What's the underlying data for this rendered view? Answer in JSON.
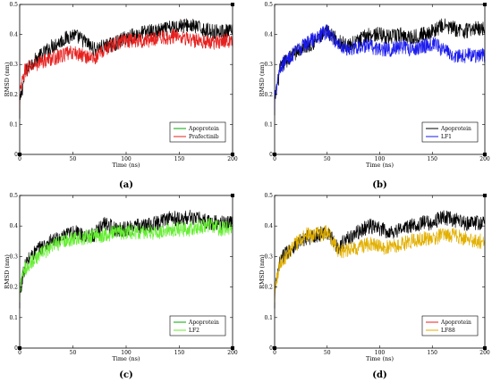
{
  "chart_data": [
    {
      "type": "line",
      "panel_label": "(a)",
      "xlabel": "Time (ns)",
      "ylabel": "RMSD (nm)",
      "xlim": [
        0,
        200
      ],
      "ylim": [
        0,
        0.5
      ],
      "xticks": [
        "0",
        "50",
        "100",
        "150",
        "200"
      ],
      "yticks": [
        "0",
        "0.1",
        "0.2",
        "0.3",
        "0.4",
        "0.5"
      ],
      "legend_position": "bottom-right",
      "x": [
        0,
        5,
        10,
        20,
        30,
        40,
        50,
        60,
        70,
        80,
        90,
        100,
        110,
        120,
        130,
        140,
        150,
        160,
        170,
        180,
        190,
        200
      ],
      "series": [
        {
          "name": "Apoprotein",
          "color": "#000000",
          "legend_color": "#00aa00",
          "values": [
            0.17,
            0.27,
            0.3,
            0.33,
            0.36,
            0.38,
            0.4,
            0.38,
            0.35,
            0.36,
            0.37,
            0.39,
            0.4,
            0.41,
            0.41,
            0.42,
            0.43,
            0.43,
            0.42,
            0.41,
            0.41,
            0.41
          ]
        },
        {
          "name": "Prafectinib",
          "color": "#e6201e",
          "legend_color": "#e6201e",
          "values": [
            0.2,
            0.28,
            0.29,
            0.31,
            0.32,
            0.33,
            0.34,
            0.33,
            0.32,
            0.35,
            0.37,
            0.38,
            0.38,
            0.38,
            0.39,
            0.39,
            0.4,
            0.38,
            0.38,
            0.37,
            0.38,
            0.38
          ]
        }
      ]
    },
    {
      "type": "line",
      "panel_label": "(b)",
      "xlabel": "Time (ns)",
      "ylabel": "RMSD (nm)",
      "xlim": [
        0,
        200
      ],
      "ylim": [
        0,
        0.5
      ],
      "xticks": [
        "0",
        "50",
        "100",
        "150",
        "200"
      ],
      "yticks": [
        "0",
        "0.1",
        "0.2",
        "0.3",
        "0.4",
        "0.5"
      ],
      "legend_position": "bottom-right",
      "x": [
        0,
        5,
        10,
        20,
        30,
        40,
        50,
        60,
        70,
        80,
        90,
        100,
        110,
        120,
        130,
        140,
        150,
        160,
        170,
        180,
        190,
        200
      ],
      "series": [
        {
          "name": "Apoprotein",
          "color": "#000000",
          "legend_color": "#000000",
          "values": [
            0.18,
            0.28,
            0.31,
            0.34,
            0.36,
            0.38,
            0.41,
            0.38,
            0.36,
            0.38,
            0.4,
            0.4,
            0.39,
            0.4,
            0.39,
            0.4,
            0.41,
            0.43,
            0.42,
            0.41,
            0.42,
            0.42
          ]
        },
        {
          "name": "LF1",
          "color": "#1a1aee",
          "legend_color": "#1a1aee",
          "values": [
            0.2,
            0.29,
            0.31,
            0.34,
            0.37,
            0.39,
            0.41,
            0.37,
            0.35,
            0.36,
            0.36,
            0.35,
            0.35,
            0.36,
            0.35,
            0.36,
            0.37,
            0.35,
            0.33,
            0.33,
            0.33,
            0.33
          ]
        }
      ]
    },
    {
      "type": "line",
      "panel_label": "(c)",
      "xlabel": "Time (ns)",
      "ylabel": "RMSD (nm)",
      "xlim": [
        0,
        200
      ],
      "ylim": [
        0,
        0.5
      ],
      "xticks": [
        "0",
        "50",
        "100",
        "150",
        "200"
      ],
      "yticks": [
        "0",
        "0.1",
        "0.2",
        "0.3",
        "0.4",
        "0.5"
      ],
      "legend_position": "bottom-right",
      "x": [
        0,
        5,
        10,
        20,
        30,
        40,
        50,
        60,
        70,
        80,
        90,
        100,
        110,
        120,
        130,
        140,
        150,
        160,
        170,
        180,
        190,
        200
      ],
      "series": [
        {
          "name": "Apoprotein",
          "color": "#000000",
          "legend_color": "#00aa00",
          "values": [
            0.18,
            0.27,
            0.3,
            0.33,
            0.35,
            0.36,
            0.38,
            0.37,
            0.37,
            0.41,
            0.39,
            0.39,
            0.4,
            0.4,
            0.41,
            0.43,
            0.42,
            0.43,
            0.42,
            0.41,
            0.41,
            0.41
          ]
        },
        {
          "name": "LF2",
          "color": "#66ee33",
          "legend_color": "#66ee33",
          "values": [
            0.2,
            0.26,
            0.28,
            0.31,
            0.33,
            0.35,
            0.36,
            0.36,
            0.37,
            0.37,
            0.38,
            0.38,
            0.38,
            0.38,
            0.38,
            0.39,
            0.39,
            0.39,
            0.4,
            0.4,
            0.39,
            0.4
          ]
        }
      ]
    },
    {
      "type": "line",
      "panel_label": "(d)",
      "xlabel": "Time (ns)",
      "ylabel": "RMSD (nm)",
      "xlim": [
        0,
        200
      ],
      "ylim": [
        0,
        0.5
      ],
      "xticks": [
        "0",
        "50",
        "100",
        "150",
        "200"
      ],
      "yticks": [
        "0",
        "0.1",
        "0.2",
        "0.3",
        "0.4",
        "0.5"
      ],
      "legend_position": "bottom-right",
      "x": [
        0,
        5,
        10,
        20,
        30,
        40,
        50,
        60,
        70,
        80,
        90,
        100,
        110,
        120,
        130,
        140,
        150,
        160,
        170,
        180,
        190,
        200
      ],
      "series": [
        {
          "name": "Apoprotein",
          "color": "#000000",
          "legend_color": "#e6201e",
          "values": [
            0.18,
            0.28,
            0.31,
            0.34,
            0.36,
            0.37,
            0.38,
            0.33,
            0.36,
            0.38,
            0.4,
            0.39,
            0.38,
            0.39,
            0.4,
            0.41,
            0.41,
            0.43,
            0.42,
            0.41,
            0.41,
            0.41
          ]
        },
        {
          "name": "LF88",
          "color": "#e2b000",
          "legend_color": "#e2b000",
          "values": [
            0.2,
            0.28,
            0.3,
            0.34,
            0.37,
            0.37,
            0.38,
            0.32,
            0.32,
            0.33,
            0.34,
            0.33,
            0.33,
            0.34,
            0.35,
            0.36,
            0.36,
            0.37,
            0.37,
            0.36,
            0.35,
            0.35
          ]
        }
      ]
    }
  ]
}
